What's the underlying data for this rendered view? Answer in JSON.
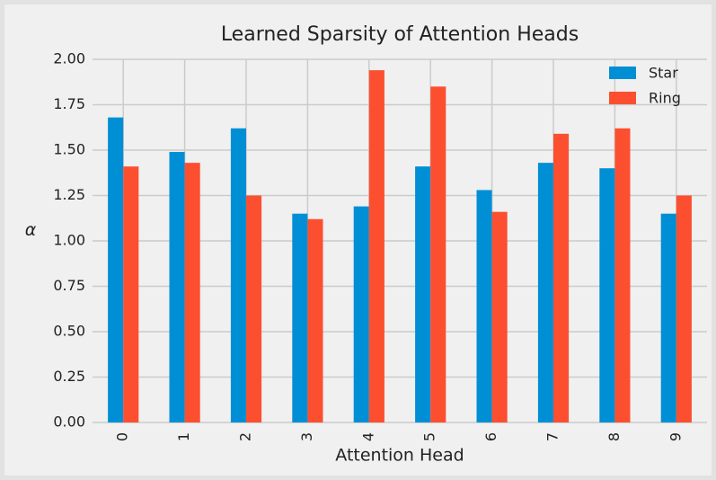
{
  "chart_data": {
    "type": "bar",
    "title": "Learned Sparsity of Attention Heads",
    "xlabel": "Attention Head",
    "ylabel": "α",
    "categories": [
      "0",
      "1",
      "2",
      "3",
      "4",
      "5",
      "6",
      "7",
      "8",
      "9"
    ],
    "series": [
      {
        "name": "Star",
        "color": "#008fd5",
        "values": [
          1.68,
          1.49,
          1.62,
          1.15,
          1.19,
          1.41,
          1.28,
          1.43,
          1.4,
          1.15
        ]
      },
      {
        "name": "Ring",
        "color": "#fc4f30",
        "values": [
          1.41,
          1.43,
          1.25,
          1.12,
          1.94,
          1.85,
          1.16,
          1.59,
          1.62,
          1.25
        ]
      }
    ],
    "ylim": [
      0,
      2
    ],
    "yticks": [
      {
        "value": 0,
        "label": "0.00"
      },
      0.25,
      {
        "value": 0.5,
        "label": "0.50"
      },
      0.75,
      {
        "value": 1,
        "label": "1.00"
      },
      1.25,
      {
        "value": 1.5,
        "label": "1.50"
      },
      1.75,
      {
        "value": 2,
        "label": "2.00"
      }
    ],
    "grid": true,
    "legend": "upper right"
  }
}
